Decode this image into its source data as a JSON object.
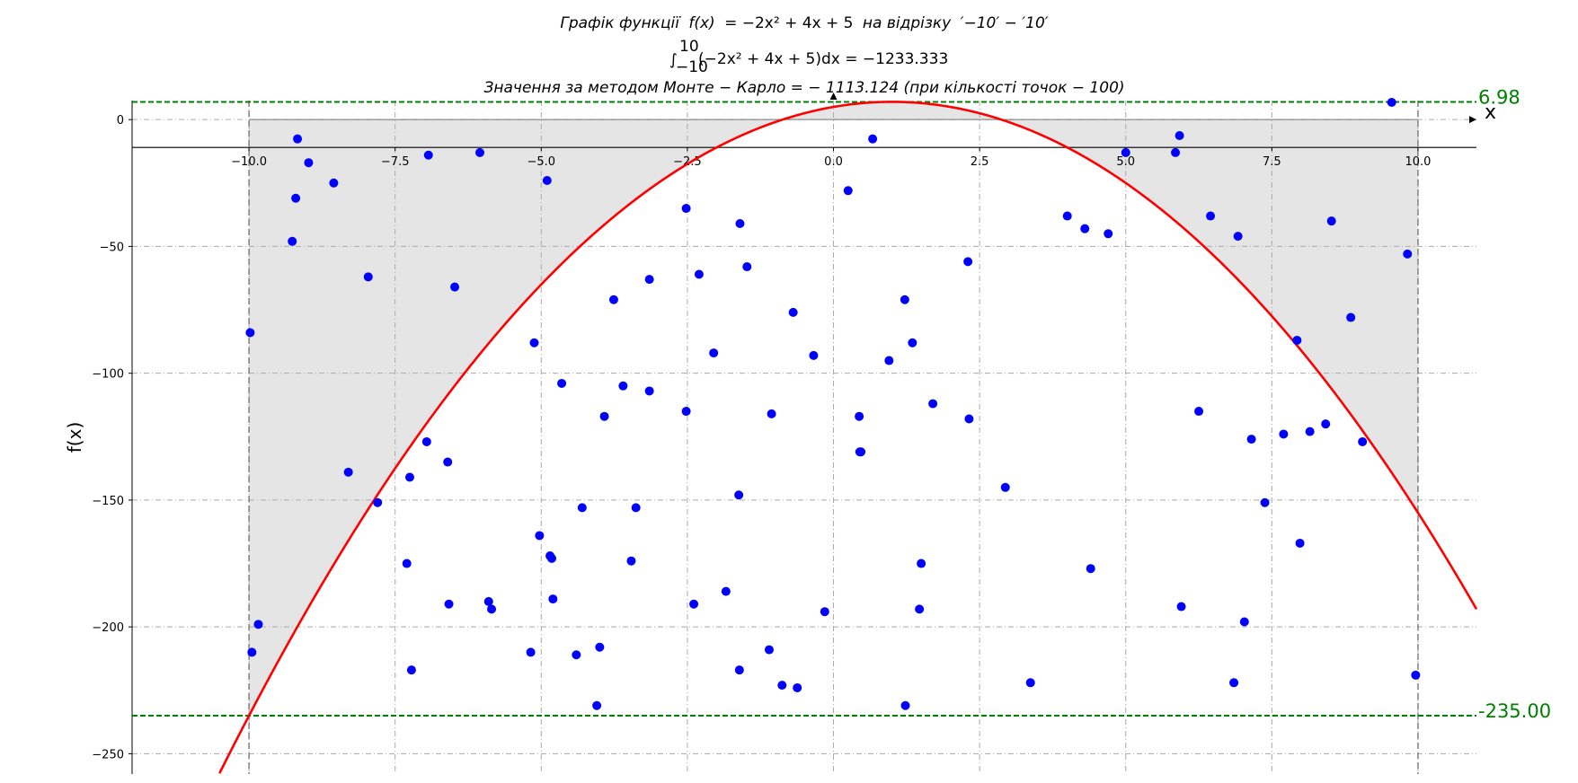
{
  "chart_data": {
    "type": "scatter",
    "title_lines": [
      "Графік функції f(x)  =  −2x² + 4x + 5 на відрізку ′−10′  −  ′10′",
      "∫₋₁₀¹⁰(−2x² + 4x + 5)dx  =  −1233.333",
      "Значення за методом Монте − Карло  =  − 1113.124 (при кількості точок  −  100)"
    ],
    "title_parts": {
      "line1_pre": "Графік функції",
      "line1_fx": "f(x)",
      "line1_eq": "= −2x² + 4x + 5",
      "line1_mid": "на відрізку",
      "line1_range": "′−10′ − ′10′",
      "line2_integral": "∫",
      "line2_upper": "10",
      "line2_lower": "−10",
      "line2_body": "(−2x² + 4x + 5)dx  =  −1233.333",
      "line3": "Значення за методом Монте − Карло  =  − 1113.124 (при кількості точок  −  100)"
    },
    "xlabel": "x",
    "ylabel": "f(x)",
    "xlim": [
      -12.0,
      11.0
    ],
    "ylim": [
      -258.0,
      7.5
    ],
    "x_ticks": [
      -10.0,
      -7.5,
      -5.0,
      -2.5,
      0.0,
      2.5,
      5.0,
      7.5,
      10.0
    ],
    "x_tick_labels": [
      "−10.0",
      "−7.5",
      "−5.0",
      "−2.5",
      "0.0",
      "2.5",
      "5.0",
      "7.5",
      "10.0"
    ],
    "y_ticks": [
      0,
      -50,
      -100,
      -150,
      -200,
      -250
    ],
    "y_tick_labels": [
      "0",
      "−50",
      "−100",
      "−150",
      "−200",
      "−250"
    ],
    "grid": true,
    "function": {
      "a": -2,
      "b": 4,
      "c": 5,
      "color": "#ff0000"
    },
    "interval": [
      -10,
      10
    ],
    "hlines": [
      {
        "y": 6.98,
        "label": "6.98",
        "color": "#008000"
      },
      {
        "y": -235.0,
        "label": "-235.00",
        "color": "#008000"
      }
    ],
    "series": [
      {
        "color": "#0000ff",
        "points": [
          [
            -9.98,
            -84
          ],
          [
            -9.95,
            -210
          ],
          [
            -9.84,
            -199
          ],
          [
            -9.26,
            -48
          ],
          [
            -9.2,
            -31
          ],
          [
            -9.17,
            -7.6
          ],
          [
            -8.98,
            -17
          ],
          [
            -8.55,
            -25
          ],
          [
            -8.3,
            -139
          ],
          [
            -7.96,
            -62
          ],
          [
            -7.8,
            -151
          ],
          [
            -7.3,
            -175
          ],
          [
            -7.25,
            -141
          ],
          [
            -7.22,
            -217
          ],
          [
            -6.96,
            -127
          ],
          [
            -6.93,
            -14
          ],
          [
            -6.6,
            -135
          ],
          [
            -6.58,
            -191
          ],
          [
            -6.48,
            -66
          ],
          [
            -6.05,
            -13
          ],
          [
            -5.9,
            -190
          ],
          [
            -5.85,
            -193
          ],
          [
            -5.18,
            -210
          ],
          [
            -5.12,
            -88
          ],
          [
            -5.03,
            -164
          ],
          [
            -4.9,
            -24
          ],
          [
            -4.85,
            -172
          ],
          [
            -4.82,
            -173
          ],
          [
            -4.8,
            -189
          ],
          [
            -4.65,
            -104
          ],
          [
            -4.4,
            -211
          ],
          [
            -4.3,
            -153
          ],
          [
            -4.05,
            -231
          ],
          [
            -4.0,
            -208
          ],
          [
            -3.92,
            -117
          ],
          [
            -3.76,
            -71
          ],
          [
            -3.6,
            -105
          ],
          [
            -3.46,
            -174
          ],
          [
            -3.38,
            -153
          ],
          [
            -3.15,
            -107
          ],
          [
            -3.15,
            -63
          ],
          [
            -2.52,
            -35
          ],
          [
            -2.52,
            -115
          ],
          [
            -2.39,
            -191
          ],
          [
            -2.3,
            -61
          ],
          [
            -2.05,
            -92
          ],
          [
            -1.84,
            -186
          ],
          [
            -1.62,
            -148
          ],
          [
            -1.61,
            -217
          ],
          [
            -1.6,
            -41
          ],
          [
            -1.48,
            -58
          ],
          [
            -1.1,
            -209
          ],
          [
            -1.06,
            -116
          ],
          [
            -0.88,
            -223
          ],
          [
            -0.69,
            -76
          ],
          [
            -0.62,
            -224
          ],
          [
            -0.34,
            -93
          ],
          [
            -0.15,
            -194
          ],
          [
            0.25,
            -28
          ],
          [
            0.44,
            -117
          ],
          [
            0.45,
            -131
          ],
          [
            0.47,
            -131
          ],
          [
            0.67,
            -7.6
          ],
          [
            0.95,
            -95
          ],
          [
            1.22,
            -71
          ],
          [
            1.23,
            -231
          ],
          [
            1.35,
            -88
          ],
          [
            1.47,
            -193
          ],
          [
            1.5,
            -175
          ],
          [
            1.7,
            -112
          ],
          [
            2.3,
            -56
          ],
          [
            2.32,
            -118
          ],
          [
            2.94,
            -145
          ],
          [
            3.37,
            -222
          ],
          [
            4.0,
            -38
          ],
          [
            4.3,
            -43
          ],
          [
            4.4,
            -177
          ],
          [
            4.7,
            -45
          ],
          [
            5.0,
            -13
          ],
          [
            5.85,
            -13
          ],
          [
            5.92,
            -6.3
          ],
          [
            5.95,
            -192
          ],
          [
            6.25,
            -115
          ],
          [
            6.45,
            -38
          ],
          [
            6.85,
            -222
          ],
          [
            6.92,
            -46
          ],
          [
            7.03,
            -198
          ],
          [
            7.15,
            -126
          ],
          [
            7.38,
            -151
          ],
          [
            7.7,
            -124
          ],
          [
            7.93,
            -87
          ],
          [
            7.98,
            -167
          ],
          [
            8.15,
            -123
          ],
          [
            8.42,
            -120
          ],
          [
            8.52,
            -40
          ],
          [
            8.85,
            -78
          ],
          [
            9.05,
            -127
          ],
          [
            9.55,
            6.8
          ],
          [
            9.82,
            -53
          ],
          [
            9.96,
            -219
          ]
        ]
      }
    ]
  }
}
